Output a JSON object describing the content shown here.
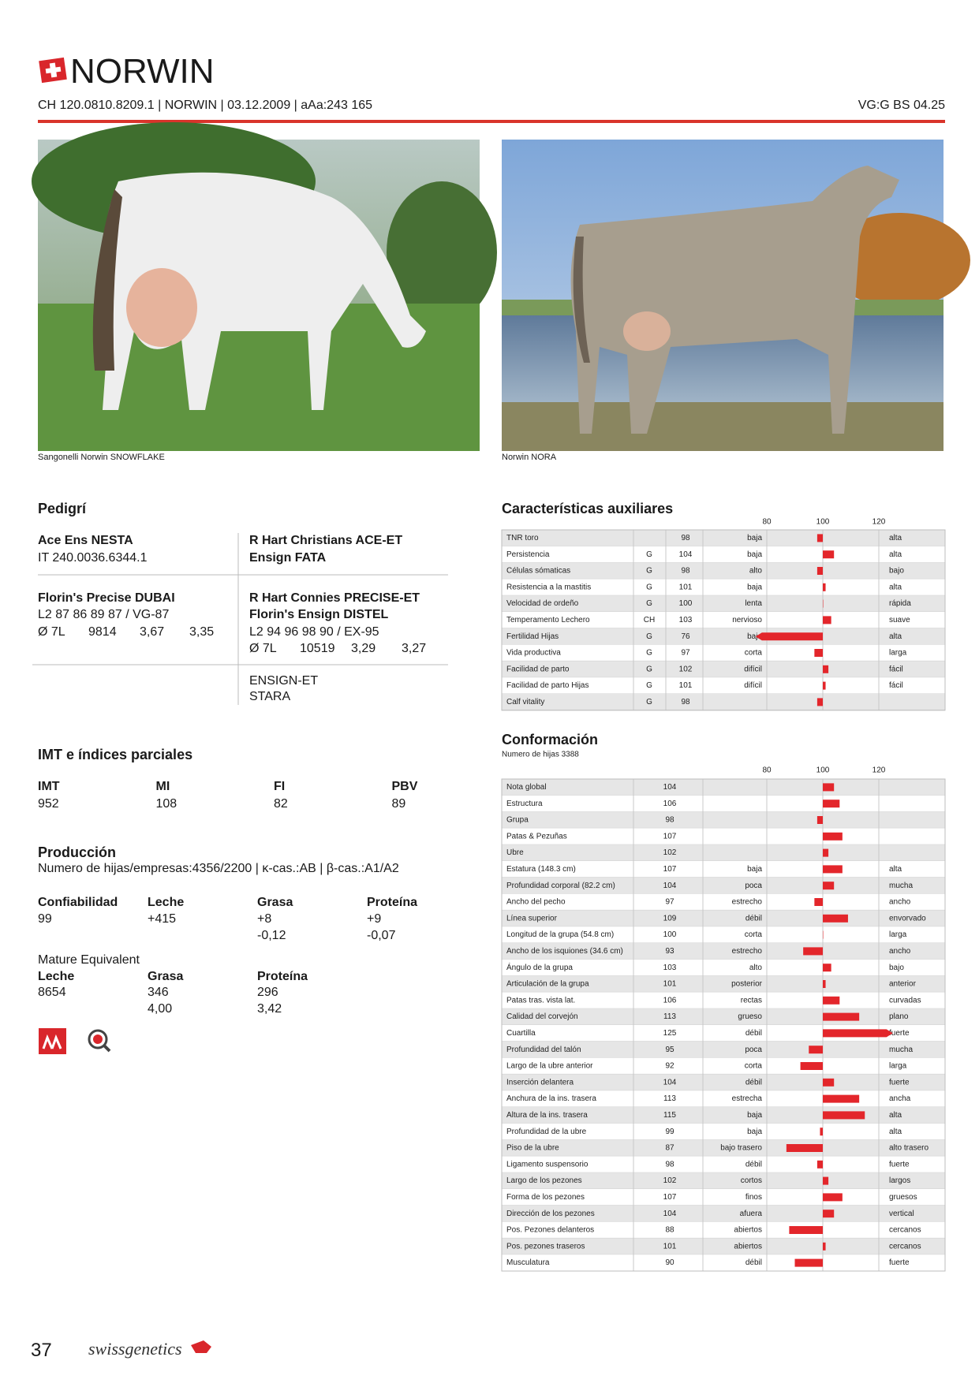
{
  "header": {
    "title": "NORWIN",
    "info": "CH 120.0810.8209.1 | NORWIN | 03.12.2009 | aAa:243 165",
    "classification": "VG:G BS 04.25"
  },
  "photos": [
    {
      "caption": "Sangonelli Norwin SNOWFLAKE"
    },
    {
      "caption": "Norwin NORA"
    }
  ],
  "pedigree": {
    "title": "Pedigrí",
    "sire": {
      "name": "Ace Ens NESTA",
      "id": "IT 240.0036.6344.1"
    },
    "sire_sire": "R Hart Christians ACE-ET",
    "sire_dam": "Ensign FATA",
    "dam": {
      "name": "Florin's Precise DUBAI",
      "classification": "L2 87 86 89 87 / VG-87",
      "production": [
        "Ø 7L",
        "9814",
        "3,67",
        "3,35"
      ]
    },
    "dam_sire": "R Hart Connies PRECISE-ET",
    "dam_dam": {
      "name": "Florin's Ensign DISTEL",
      "classification": "L2 94 96 98 90 / EX-95",
      "production": [
        "Ø 7L",
        "10519",
        "3,29",
        "3,27"
      ]
    },
    "dam_dam_sire": "ENSIGN-ET",
    "dam_dam_dam": "STARA"
  },
  "indices": {
    "title": "IMT e índices parciales",
    "columns": [
      {
        "label": "IMT",
        "value": 952
      },
      {
        "label": "MI",
        "value": 108
      },
      {
        "label": "FI",
        "value": 82
      },
      {
        "label": "PBV",
        "value": 89
      }
    ]
  },
  "production": {
    "title": "Producción",
    "subtitle": "Numero de hijas/empresas:4356/2200 | κ-cas.:AB | β-cas.:A1/A2",
    "columns": [
      {
        "label": "Confiabilidad",
        "values": [
          99
        ]
      },
      {
        "label": "Leche",
        "values": [
          "+415"
        ]
      },
      {
        "label": "Grasa",
        "values": [
          "+8",
          "-0,12"
        ]
      },
      {
        "label": "Proteína",
        "values": [
          "+9",
          "-0,07"
        ]
      }
    ]
  },
  "mature_equivalent": {
    "title": "Mature Equivalent",
    "columns": [
      {
        "label": "Leche",
        "values": [
          8654
        ]
      },
      {
        "label": "Grasa",
        "values": [
          346,
          "4,00"
        ]
      },
      {
        "label": "Proteína",
        "values": [
          296,
          "3,42"
        ]
      }
    ]
  },
  "aux": {
    "title": "Características auxiliares",
    "xlim": [
      80,
      120
    ],
    "xticks": [
      80,
      100,
      120
    ],
    "color": "#e3262b",
    "rows": [
      {
        "name": "TNR toro",
        "value": 98,
        "low": "baja",
        "high": "alta"
      },
      {
        "name": "Persistencia",
        "code": "G",
        "value": 104,
        "low": "baja",
        "high": "alta"
      },
      {
        "name": "Células sómaticas",
        "code": "G",
        "value": 98,
        "low": "alto",
        "high": "bajo"
      },
      {
        "name": "Resistencia a la mastitis",
        "code": "G",
        "value": 101,
        "low": "baja",
        "high": "alta"
      },
      {
        "name": "Velocidad de ordeño",
        "code": "G",
        "value": 100,
        "low": "lenta",
        "high": "rápida"
      },
      {
        "name": "Temperamento Lechero",
        "code": "CH",
        "value": 103,
        "low": "nervioso",
        "high": "suave"
      },
      {
        "name": "Fertilidad Hijas",
        "code": "G",
        "value": 76,
        "low": "baja",
        "high": "alta"
      },
      {
        "name": "Vida productiva",
        "code": "G",
        "value": 97,
        "low": "corta",
        "high": "larga"
      },
      {
        "name": "Facilidad de parto",
        "code": "G",
        "value": 102,
        "low": "difícil",
        "high": "fácil"
      },
      {
        "name": "Facilidad de parto Hijas",
        "code": "G",
        "value": 101,
        "low": "difícil",
        "high": "fácil"
      },
      {
        "name": "Calf vitality",
        "code": "G",
        "value": 98
      }
    ]
  },
  "conformation": {
    "title": "Conformación",
    "subtitle": "Numero de hijas 3388",
    "xlim": [
      80,
      120
    ],
    "xticks": [
      80,
      100,
      120
    ],
    "color": "#e3262b",
    "rows": [
      {
        "name": "Nota global",
        "value": 104
      },
      {
        "name": "Estructura",
        "value": 106
      },
      {
        "name": "Grupa",
        "value": 98
      },
      {
        "name": "Patas & Pezuñas",
        "value": 107
      },
      {
        "name": "Ubre",
        "value": 102
      },
      {
        "name": "Estatura (148.3 cm)",
        "value": 107,
        "low": "baja",
        "high": "alta"
      },
      {
        "name": "Profundidad corporal (82.2 cm)",
        "value": 104,
        "low": "poca",
        "high": "mucha"
      },
      {
        "name": "Ancho del pecho",
        "value": 97,
        "low": "estrecho",
        "high": "ancho"
      },
      {
        "name": "Línea superior",
        "value": 109,
        "low": "débil",
        "high": "envorvado"
      },
      {
        "name": "Longitud de la grupa (54.8 cm)",
        "value": 100,
        "low": "corta",
        "high": "larga"
      },
      {
        "name": "Ancho de los isquiones (34.6 cm)",
        "value": 93,
        "low": "estrecho",
        "high": "ancho"
      },
      {
        "name": "Ángulo de la grupa",
        "value": 103,
        "low": "alto",
        "high": "bajo"
      },
      {
        "name": "Articulación de la grupa",
        "value": 101,
        "low": "posterior",
        "high": "anterior"
      },
      {
        "name": "Patas tras. vista lat.",
        "value": 106,
        "low": "rectas",
        "high": "curvadas"
      },
      {
        "name": "Calidad del corvejón",
        "value": 113,
        "low": "grueso",
        "high": "plano"
      },
      {
        "name": "Cuartilla",
        "value": 125,
        "low": "débil",
        "high": "fuerte"
      },
      {
        "name": "Profundidad del talón",
        "value": 95,
        "low": "poca",
        "high": "mucha"
      },
      {
        "name": "Largo de la ubre anterior",
        "value": 92,
        "low": "corta",
        "high": "larga"
      },
      {
        "name": "Inserción delantera",
        "value": 104,
        "low": "débil",
        "high": "fuerte"
      },
      {
        "name": "Anchura de la ins. trasera",
        "value": 113,
        "low": "estrecha",
        "high": "ancha"
      },
      {
        "name": "Altura de la ins. trasera",
        "value": 115,
        "low": "baja",
        "high": "alta"
      },
      {
        "name": "Profundidad de la ubre",
        "value": 99,
        "low": "baja",
        "high": "alta"
      },
      {
        "name": "Piso de la ubre",
        "value": 87,
        "low": "bajo trasero",
        "high": "alto trasero"
      },
      {
        "name": "Ligamento suspensorio",
        "value": 98,
        "low": "débil",
        "high": "fuerte"
      },
      {
        "name": "Largo de los pezones",
        "value": 102,
        "low": "cortos",
        "high": "largos"
      },
      {
        "name": "Forma de los pezones",
        "value": 107,
        "low": "finos",
        "high": "gruesos"
      },
      {
        "name": "Dirección de los pezones",
        "value": 104,
        "low": "afuera",
        "high": "vertical"
      },
      {
        "name": "Pos. Pezones delanteros",
        "value": 88,
        "low": "abiertos",
        "high": "cercanos"
      },
      {
        "name": "Pos. pezones traseros",
        "value": 101,
        "low": "abiertos",
        "high": "cercanos"
      },
      {
        "name": "Musculatura",
        "value": 90,
        "low": "débil",
        "high": "fuerte"
      }
    ]
  },
  "footer": {
    "page": "37",
    "brand": "swissgenetics"
  }
}
